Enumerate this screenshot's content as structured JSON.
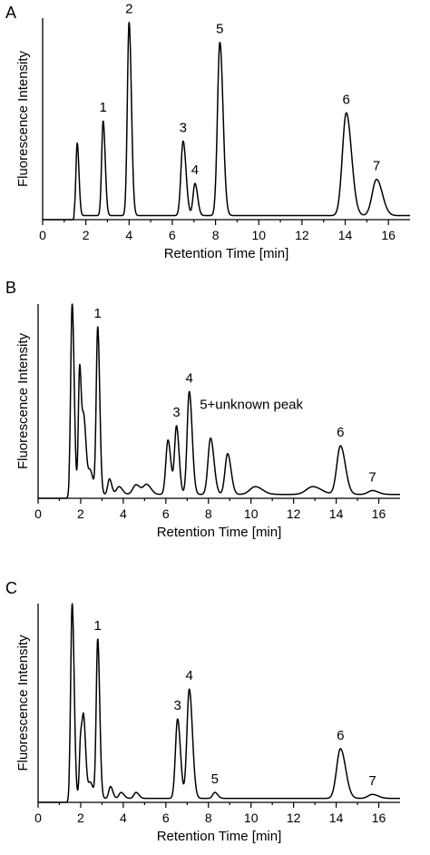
{
  "chart_data": [
    {
      "type": "line",
      "panel": "A",
      "xlabel": "Retention Time [min]",
      "ylabel": "Fluorescence Intensity",
      "xlim": [
        0,
        17
      ],
      "ylim": [
        0,
        1.0
      ],
      "xticks": [
        0,
        2,
        4,
        6,
        8,
        10,
        12,
        14,
        16
      ],
      "grid": false,
      "baseline": 0.02,
      "peaks": [
        {
          "x": 1.6,
          "h": 0.36,
          "w": 0.06,
          "label": ""
        },
        {
          "x": 2.8,
          "h": 0.47,
          "w": 0.07,
          "label": "1"
        },
        {
          "x": 4.0,
          "h": 0.96,
          "w": 0.08,
          "label": "2"
        },
        {
          "x": 6.5,
          "h": 0.37,
          "w": 0.1,
          "label": "3"
        },
        {
          "x": 7.05,
          "h": 0.16,
          "w": 0.09,
          "label": "4"
        },
        {
          "x": 8.2,
          "h": 0.86,
          "w": 0.11,
          "label": "5"
        },
        {
          "x": 14.05,
          "h": 0.51,
          "w": 0.18,
          "label": "6"
        },
        {
          "x": 15.45,
          "h": 0.18,
          "w": 0.2,
          "label": "7"
        }
      ]
    },
    {
      "type": "line",
      "panel": "B",
      "xlabel": "Retention Time [min]",
      "ylabel": "Fluorescence Intensity",
      "xlim": [
        0,
        17
      ],
      "ylim": [
        0,
        1.0
      ],
      "xticks": [
        0,
        2,
        4,
        6,
        8,
        10,
        12,
        14,
        16
      ],
      "grid": false,
      "baseline": 0.02,
      "peaks": [
        {
          "x": 1.6,
          "h": 0.98,
          "w": 0.07,
          "label": ""
        },
        {
          "x": 1.95,
          "h": 0.65,
          "w": 0.06,
          "label": ""
        },
        {
          "x": 2.15,
          "h": 0.38,
          "w": 0.08,
          "label": ""
        },
        {
          "x": 2.45,
          "h": 0.12,
          "w": 0.1,
          "label": ""
        },
        {
          "x": 2.8,
          "h": 0.86,
          "w": 0.07,
          "label": "1"
        },
        {
          "x": 3.35,
          "h": 0.08,
          "w": 0.08,
          "label": ""
        },
        {
          "x": 3.8,
          "h": 0.04,
          "w": 0.12,
          "label": ""
        },
        {
          "x": 4.6,
          "h": 0.05,
          "w": 0.15,
          "label": ""
        },
        {
          "x": 5.1,
          "h": 0.05,
          "w": 0.15,
          "label": ""
        },
        {
          "x": 6.1,
          "h": 0.28,
          "w": 0.1,
          "label": ""
        },
        {
          "x": 6.5,
          "h": 0.35,
          "w": 0.09,
          "label": "3"
        },
        {
          "x": 7.1,
          "h": 0.53,
          "w": 0.1,
          "label": "4"
        },
        {
          "x": 8.1,
          "h": 0.29,
          "w": 0.12,
          "label": "5+unknown peak"
        },
        {
          "x": 8.9,
          "h": 0.21,
          "w": 0.12,
          "label": ""
        },
        {
          "x": 10.2,
          "h": 0.04,
          "w": 0.25,
          "label": ""
        },
        {
          "x": 12.9,
          "h": 0.04,
          "w": 0.3,
          "label": ""
        },
        {
          "x": 14.2,
          "h": 0.25,
          "w": 0.17,
          "label": "6"
        },
        {
          "x": 15.7,
          "h": 0.02,
          "w": 0.2,
          "label": "7"
        }
      ]
    },
    {
      "type": "line",
      "panel": "C",
      "xlabel": "Retention Time [min]",
      "ylabel": "Fluorescence Intensity",
      "xlim": [
        0,
        17
      ],
      "ylim": [
        0,
        1.0
      ],
      "xticks": [
        0,
        2,
        4,
        6,
        8,
        10,
        12,
        14,
        16
      ],
      "grid": false,
      "baseline": 0.02,
      "peaks": [
        {
          "x": 1.6,
          "h": 0.98,
          "w": 0.07,
          "label": ""
        },
        {
          "x": 2.0,
          "h": 0.3,
          "w": 0.06,
          "label": ""
        },
        {
          "x": 2.15,
          "h": 0.36,
          "w": 0.07,
          "label": ""
        },
        {
          "x": 2.45,
          "h": 0.08,
          "w": 0.1,
          "label": ""
        },
        {
          "x": 2.8,
          "h": 0.8,
          "w": 0.07,
          "label": "1"
        },
        {
          "x": 3.4,
          "h": 0.06,
          "w": 0.08,
          "label": ""
        },
        {
          "x": 3.9,
          "h": 0.03,
          "w": 0.1,
          "label": ""
        },
        {
          "x": 4.6,
          "h": 0.03,
          "w": 0.1,
          "label": ""
        },
        {
          "x": 6.55,
          "h": 0.4,
          "w": 0.1,
          "label": "3"
        },
        {
          "x": 7.1,
          "h": 0.55,
          "w": 0.11,
          "label": "4"
        },
        {
          "x": 8.3,
          "h": 0.03,
          "w": 0.1,
          "label": "5"
        },
        {
          "x": 14.2,
          "h": 0.25,
          "w": 0.18,
          "label": "6"
        },
        {
          "x": 15.7,
          "h": 0.02,
          "w": 0.2,
          "label": "7"
        }
      ]
    }
  ]
}
